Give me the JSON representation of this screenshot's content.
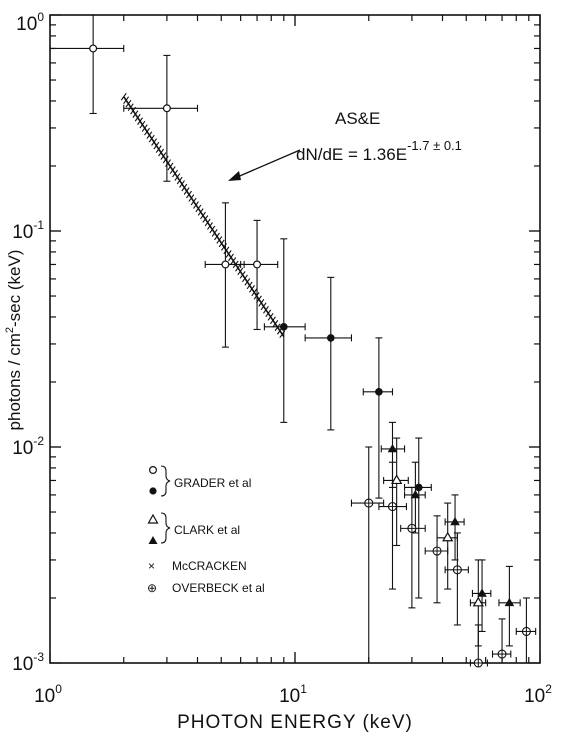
{
  "chart_data": {
    "type": "scatter",
    "xscale": "log",
    "yscale": "log",
    "xlim": [
      1,
      100
    ],
    "ylim": [
      0.001,
      1
    ],
    "xlabel": "PHOTON ENERGY (keV)",
    "ylabel_parts": {
      "pre": "photons / cm",
      "sup": "2",
      "post": "-sec (keV)"
    },
    "x_ticks": [
      {
        "base": "10",
        "exp": "0",
        "value": 1
      },
      {
        "base": "10",
        "exp": "1",
        "value": 10
      },
      {
        "base": "10",
        "exp": "2",
        "value": 100
      }
    ],
    "y_ticks": [
      {
        "base": "10",
        "exp": "0",
        "value": 1
      },
      {
        "base": "10",
        "exp": "-1",
        "value": 0.1
      },
      {
        "base": "10",
        "exp": "-2",
        "value": 0.01
      },
      {
        "base": "10",
        "exp": "-3",
        "value": 0.001
      }
    ],
    "fit_line": {
      "label": "AS&E",
      "equation_pre": "dN/dE = 1.36E",
      "equation_sup": "-1.7 ± 0.1",
      "x_range": [
        2,
        9
      ],
      "amplitude": 1.36,
      "index": -1.7
    },
    "legend": [
      {
        "symbols": "○ ●",
        "label": "GRADER et al"
      },
      {
        "symbols": "△ ▲",
        "label": "CLARK et al"
      },
      {
        "symbols": "×",
        "label": "McCRACKEN"
      },
      {
        "symbols": "⊕",
        "label": "OVERBECK et al"
      }
    ],
    "series": [
      {
        "name": "GRADER et al (open)",
        "marker": "open-circle",
        "points": [
          {
            "x": 1.5,
            "y": 0.7,
            "xerr": [
              1.0,
              2.0
            ],
            "yerr": [
              0.35,
              1.0
            ]
          },
          {
            "x": 3.0,
            "y": 0.37,
            "xerr": [
              2.0,
              4.0
            ],
            "yerr": [
              0.17,
              0.65
            ]
          },
          {
            "x": 5.2,
            "y": 0.07,
            "xerr": [
              4.3,
              6.2
            ],
            "yerr": [
              0.029,
              0.135
            ]
          },
          {
            "x": 7.0,
            "y": 0.07,
            "xerr": [
              6.0,
              8.5
            ],
            "yerr": [
              0.035,
              0.112
            ]
          }
        ]
      },
      {
        "name": "GRADER et al (filled)",
        "marker": "filled-circle",
        "points": [
          {
            "x": 9.0,
            "y": 0.036,
            "xerr": [
              7.5,
              11.0
            ],
            "yerr": [
              0.013,
              0.092
            ]
          },
          {
            "x": 14.0,
            "y": 0.032,
            "xerr": [
              11.0,
              17.0
            ],
            "yerr": [
              0.012,
              0.061
            ]
          },
          {
            "x": 22.0,
            "y": 0.018,
            "xerr": [
              19.0,
              25.0
            ],
            "yerr": [
              0.0058,
              0.032
            ]
          },
          {
            "x": 32.0,
            "y": 0.0065,
            "xerr": [
              28.0,
              36.0
            ],
            "yerr": [
              0.002,
              0.011
            ]
          }
        ]
      },
      {
        "name": "CLARK et al (open)",
        "marker": "open-triangle",
        "points": [
          {
            "x": 26.0,
            "y": 0.007,
            "xerr": [
              23.0,
              29.0
            ],
            "yerr": [
              0.0035,
              0.011
            ]
          },
          {
            "x": 42.0,
            "y": 0.0038,
            "xerr": [
              38.0,
              46.0
            ],
            "yerr": [
              0.0022,
              0.0055
            ]
          },
          {
            "x": 56.0,
            "y": 0.0019,
            "xerr": [
              52.0,
              60.0
            ],
            "yerr": [
              0.0012,
              0.003
            ]
          }
        ]
      },
      {
        "name": "CLARK et al (filled)",
        "marker": "filled-triangle",
        "points": [
          {
            "x": 25.0,
            "y": 0.0098,
            "xerr": [
              22.5,
              28.0
            ],
            "yerr": [
              0.0065,
              0.013
            ]
          },
          {
            "x": 31.0,
            "y": 0.006,
            "xerr": [
              28.0,
              34.0
            ],
            "yerr": [
              0.004,
              0.0085
            ]
          },
          {
            "x": 45.0,
            "y": 0.0045,
            "xerr": [
              41.0,
              49.0
            ],
            "yerr": [
              0.003,
              0.006
            ]
          },
          {
            "x": 58.0,
            "y": 0.0021,
            "xerr": [
              53.0,
              63.0
            ],
            "yerr": [
              0.0014,
              0.003
            ]
          },
          {
            "x": 75.0,
            "y": 0.0019,
            "xerr": [
              68.0,
              83.0
            ],
            "yerr": [
              0.0012,
              0.0028
            ]
          }
        ]
      },
      {
        "name": "OVERBECK et al",
        "marker": "crossed-circle",
        "points": [
          {
            "x": 20.0,
            "y": 0.0055,
            "xerr": [
              17.0,
              23.0
            ],
            "yerr": [
              0.001,
              0.01
            ]
          },
          {
            "x": 25.0,
            "y": 0.0053,
            "xerr": [
              22.0,
              28.5
            ],
            "yerr": [
              0.0022,
              0.0085
            ]
          },
          {
            "x": 30.0,
            "y": 0.0042,
            "xerr": [
              27.0,
              34.0
            ],
            "yerr": [
              0.0018,
              0.0065
            ]
          },
          {
            "x": 38.0,
            "y": 0.0033,
            "xerr": [
              34.0,
              42.0
            ],
            "yerr": [
              0.0019,
              0.0048
            ]
          },
          {
            "x": 46.0,
            "y": 0.0027,
            "xerr": [
              41.0,
              51.0
            ],
            "yerr": [
              0.0015,
              0.004
            ]
          },
          {
            "x": 56.0,
            "y": 0.001,
            "xerr": [
              52.0,
              61.0
            ],
            "yerr": [
              0.001,
              0.0015
            ]
          },
          {
            "x": 70.0,
            "y": 0.0011,
            "xerr": [
              64.0,
              76.0
            ],
            "yerr": [
              0.001,
              0.0016
            ]
          },
          {
            "x": 88.0,
            "y": 0.0014,
            "xerr": [
              80.0,
              96.0
            ],
            "yerr": [
              0.001,
              0.002
            ]
          }
        ]
      }
    ]
  }
}
